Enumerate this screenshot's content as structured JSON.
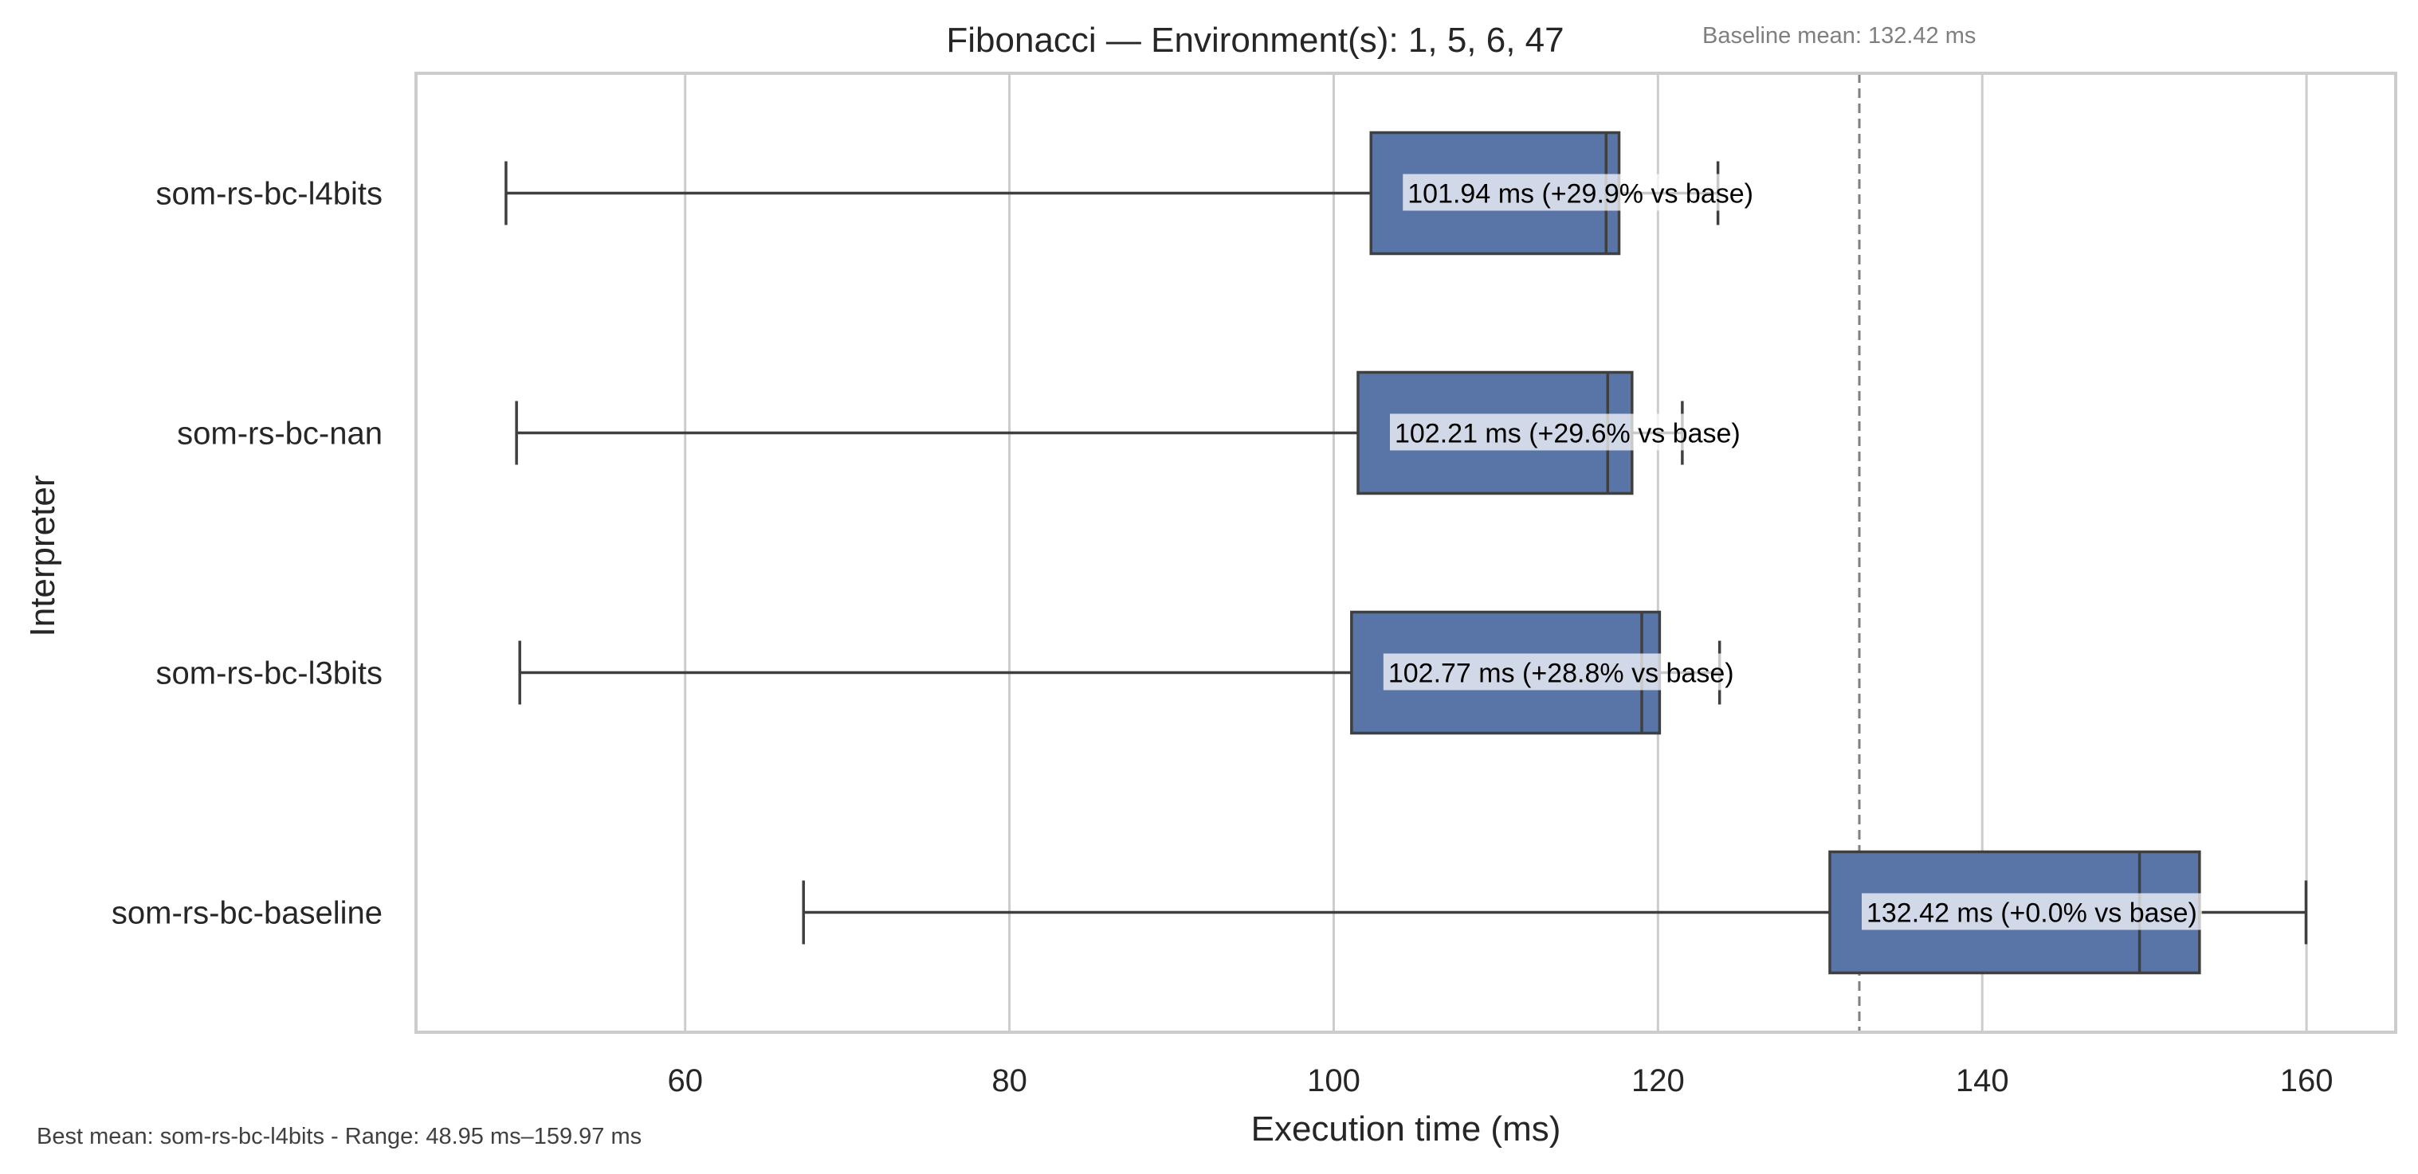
{
  "chart_data": {
    "type": "box",
    "orientation": "horizontal",
    "title": "Fibonacci — Environment(s): 1, 5, 6, 47",
    "xlabel": "Execution time (ms)",
    "ylabel": "Interpreter",
    "xlim": [
      43.4,
      165.5
    ],
    "xticks": [
      60,
      80,
      100,
      120,
      140,
      160
    ],
    "grid": "vertical",
    "box_color": "#5975a8",
    "baseline": {
      "value": 132.42,
      "label": "Baseline mean: 132.42 ms"
    },
    "footer": "Best mean: som-rs-bc-l4bits - Range: 48.95 ms–159.97 ms",
    "series": [
      {
        "name": "som-rs-bc-l4bits",
        "whisker_low": 48.95,
        "q1": 102.3,
        "median": 116.8,
        "q3": 117.6,
        "whisker_high": 123.7,
        "annotation": "101.94 ms  (+29.9% vs base)"
      },
      {
        "name": "som-rs-bc-nan",
        "whisker_low": 49.6,
        "q1": 101.5,
        "median": 116.9,
        "q3": 118.4,
        "whisker_high": 121.5,
        "annotation": "102.21 ms  (+29.6% vs base)"
      },
      {
        "name": "som-rs-bc-l3bits",
        "whisker_low": 49.8,
        "q1": 101.1,
        "median": 119.0,
        "q3": 120.1,
        "whisker_high": 123.8,
        "annotation": "102.77 ms  (+28.8% vs base)"
      },
      {
        "name": "som-rs-bc-baseline",
        "whisker_low": 67.3,
        "q1": 130.6,
        "median": 149.7,
        "q3": 153.4,
        "whisker_high": 159.97,
        "annotation": "132.42 ms  (+0.0% vs base)"
      }
    ]
  }
}
